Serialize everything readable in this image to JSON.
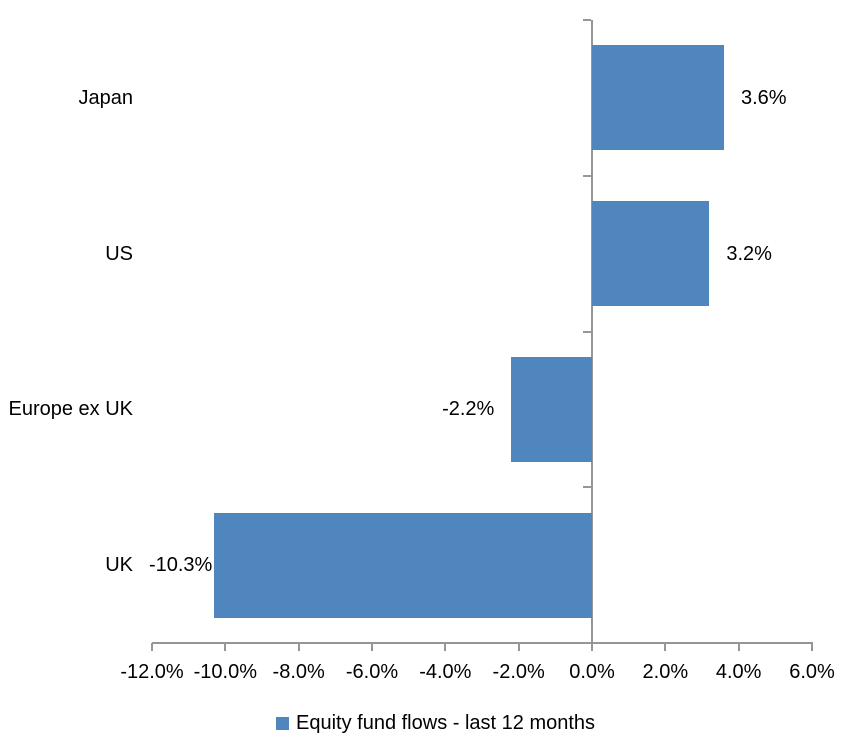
{
  "chart_data": {
    "type": "bar",
    "orientation": "horizontal",
    "title": "",
    "categories": [
      "Japan",
      "US",
      "Europe ex UK",
      "UK"
    ],
    "values": [
      3.6,
      3.2,
      -2.2,
      -10.3
    ],
    "data_labels": [
      "3.6%",
      "3.2%",
      "-2.2%",
      "-10.3%"
    ],
    "x_ticks": [
      -12,
      -10,
      -8,
      -6,
      -4,
      -2,
      0,
      2,
      4,
      6
    ],
    "x_tick_labels": [
      "-12.0%",
      "-10.0%",
      "-8.0%",
      "-6.0%",
      "-4.0%",
      "-2.0%",
      "0.0%",
      "2.0%",
      "4.0%",
      "6.0%"
    ],
    "xlim": [
      -12,
      6
    ],
    "grid": false,
    "legend_position": "bottom",
    "legend": [
      {
        "label": "Equity fund flows - last 12 months",
        "color": "#4e86bd"
      }
    ],
    "bar_color": "#4e86bd",
    "axis_color": "#969696",
    "text_color": "#000000",
    "background_color": "#ffffff"
  }
}
